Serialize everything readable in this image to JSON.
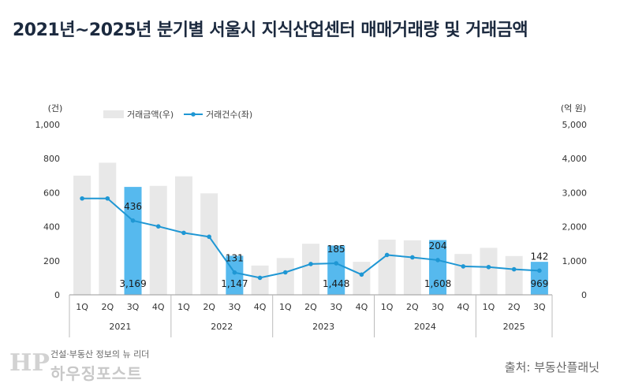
{
  "title": "2021년~2025년 분기별 서울시 지식산업센터 매매거래량 및 거래금액",
  "chart_data": {
    "type": "bar+line",
    "title": "2021년~2025년 분기별 서울시 지식산업센터 매매거래량 및 거래금액",
    "quarters": [
      "1Q",
      "2Q",
      "3Q",
      "4Q",
      "1Q",
      "2Q",
      "3Q",
      "4Q",
      "1Q",
      "2Q",
      "3Q",
      "4Q",
      "1Q",
      "2Q",
      "3Q",
      "4Q",
      "1Q",
      "2Q",
      "3Q"
    ],
    "years": [
      "2021",
      "2022",
      "2023",
      "2024",
      "2025"
    ],
    "year_quarter_counts": [
      4,
      4,
      4,
      4,
      3
    ],
    "left_axis": {
      "label": "(건)",
      "ylim": [
        0,
        1000
      ],
      "ticks": [
        "0",
        "200",
        "400",
        "600",
        "800",
        "1,000"
      ]
    },
    "right_axis": {
      "label": "(억 원)",
      "ylim": [
        0,
        5000
      ],
      "ticks": [
        "0",
        "1,000",
        "2,000",
        "3,000",
        "4,000",
        "5,000"
      ]
    },
    "series": [
      {
        "name": "거래금액(우)",
        "type": "bar",
        "axis": "right",
        "values": [
          3500,
          3880,
          3169,
          3200,
          3480,
          2980,
          1147,
          860,
          1080,
          1500,
          1448,
          970,
          1620,
          1600,
          1608,
          1200,
          1380,
          1140,
          969
        ],
        "highlight_indices": [
          2,
          6,
          10,
          14,
          18
        ],
        "color": "#e8e8e8",
        "highlight_color": "#56b9ee"
      },
      {
        "name": "거래건수(좌)",
        "type": "line",
        "axis": "left",
        "values": [
          566,
          566,
          436,
          402,
          364,
          341,
          131,
          100,
          132,
          181,
          185,
          119,
          234,
          220,
          204,
          167,
          163,
          150,
          142
        ],
        "color": "#1f97d4"
      }
    ],
    "data_labels": {
      "count": [
        "436",
        "131",
        "185",
        "204",
        "142"
      ],
      "amount": [
        "3,169",
        "1,147",
        "1,448",
        "1,608",
        "969"
      ]
    },
    "legend": [
      "거래금액(우)",
      "거래건수(좌)"
    ],
    "legend_position": "top-left"
  },
  "footer": {
    "tagline": "건설·부동산 정보의 뉴 리더",
    "brand": "하우징포스트",
    "logo": "HP",
    "source": "출처: 부동산플래닛"
  }
}
